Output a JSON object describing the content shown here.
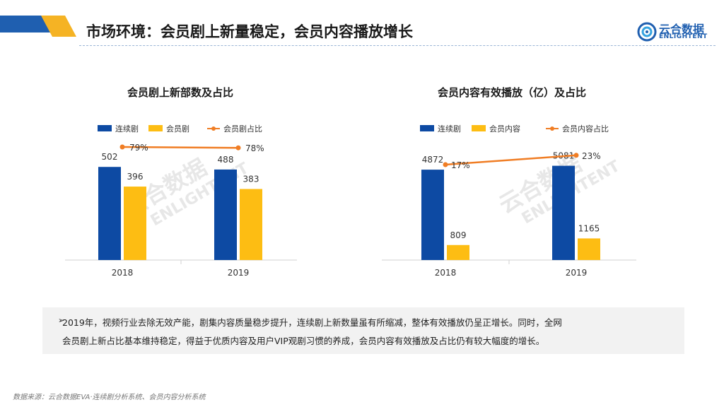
{
  "page": {
    "title": "市场环境：会员剧上新量稳定，会员内容播放增长",
    "logo_cn": "云合数据",
    "logo_en": "ENLIGHTENT",
    "watermark_cn": "云合数据",
    "watermark_en": "ENLIGHTENT"
  },
  "colors": {
    "blue": "#0d4aa3",
    "yellow": "#fdbd13",
    "orange": "#f07d24",
    "accent_blue": "#1f5fb0",
    "accent_yellow": "#f5b324"
  },
  "chart_data": [
    {
      "type": "bar",
      "title": "会员剧上新部数及占比",
      "categories": [
        "2018",
        "2019"
      ],
      "series": [
        {
          "name": "连续剧",
          "values": [
            502,
            488
          ]
        },
        {
          "name": "会员剧",
          "values": [
            396,
            383
          ]
        }
      ],
      "line_series": {
        "name": "会员剧占比",
        "values": [
          79,
          78
        ],
        "labels": [
          "79%",
          "78%"
        ]
      },
      "ylim": [
        0,
        640
      ],
      "xlabel": "",
      "ylabel": "",
      "legend": "top"
    },
    {
      "type": "bar",
      "title": "会员内容有效播放（亿）及占比",
      "categories": [
        "2018",
        "2019"
      ],
      "series": [
        {
          "name": "连续剧",
          "values": [
            4872,
            5081
          ]
        },
        {
          "name": "会员内容",
          "values": [
            809,
            1165
          ]
        }
      ],
      "line_series": {
        "name": "会员内容占比",
        "values": [
          17,
          23
        ],
        "labels": [
          "17%",
          "23%"
        ]
      },
      "ylim": [
        0,
        6400
      ],
      "xlabel": "",
      "ylabel": "",
      "legend": "top"
    }
  ],
  "summary": {
    "bullet": "➢",
    "line1": "2019年，视频行业去除无效产能，剧集内容质量稳步提升，连续剧上新数量虽有所缩减，整体有效播放仍呈正增长。同时，全网",
    "line2": "会员剧上新占比基本维持稳定，得益于优质内容及用户VIP观剧习惯的养成，会员内容有效播放及占比仍有较大幅度的增长。"
  },
  "source": "数据来源：云合数据EVA·连续剧分析系统、会员内容分析系统"
}
